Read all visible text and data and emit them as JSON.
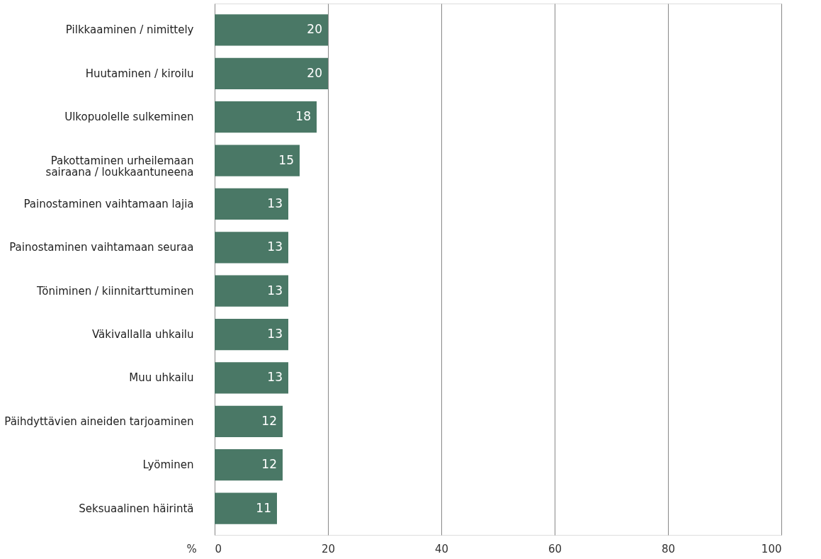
{
  "chart_data": {
    "type": "bar",
    "orientation": "horizontal",
    "xlabel": "%",
    "categories": [
      "Pilkkaaminen / nimittely",
      "Huutaminen / kiroilu",
      "Ulkopuolelle sulkeminen",
      "Pakottaminen urheilemaan\nsairaana / loukkaantuneena",
      "Painostaminen vaihtamaan lajia",
      "Painostaminen vaihtamaan seuraa",
      "Töniminen / kiinnitarttuminen",
      "Väkivallalla uhkailu",
      "Muu uhkailu",
      "Päihdyttävien aineiden tarjoaminen",
      "Lyöminen",
      "Seksuaalinen häirintä"
    ],
    "values": [
      20,
      20,
      18,
      15,
      13,
      13,
      13,
      13,
      13,
      12,
      12,
      11
    ],
    "color": "#4a7866",
    "xlim": [
      0,
      100
    ],
    "xticks": [
      0,
      20,
      40,
      60,
      80,
      100
    ],
    "grid": "x",
    "data_labels": true
  }
}
